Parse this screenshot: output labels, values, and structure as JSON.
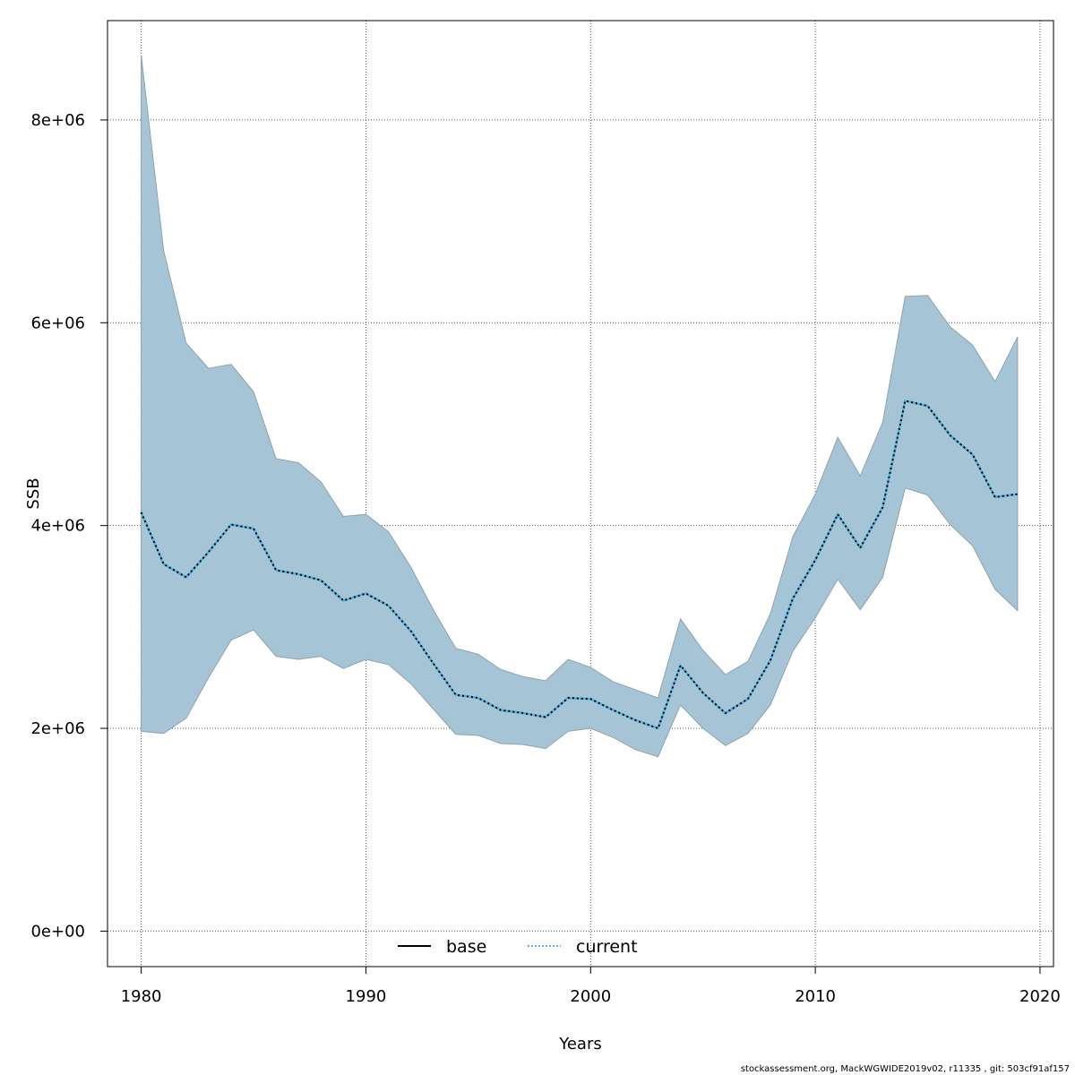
{
  "chart_data": {
    "type": "area",
    "title": "",
    "xlabel": "Years",
    "ylabel": "SSB",
    "xlim": [
      1978.5,
      2020.6
    ],
    "ylim": [
      -350000,
      8980000
    ],
    "grid": true,
    "x_ticks": [
      1980,
      1990,
      2000,
      2010,
      2020
    ],
    "x_tick_labels": [
      "1980",
      "1990",
      "2000",
      "2010",
      "2020"
    ],
    "y_ticks": [
      0,
      2000000,
      4000000,
      6000000,
      8000000
    ],
    "y_tick_labels": [
      "0e+00",
      "2e+06",
      "4e+06",
      "6e+06",
      "8e+06"
    ],
    "legend_position": "bottom",
    "legend": [
      {
        "name": "base",
        "color": "#000000",
        "style": "solid"
      },
      {
        "name": "current",
        "color": "#4fb3e0",
        "style": "dotted"
      }
    ],
    "band_color": "#a5c5d6",
    "x": [
      1980,
      1981,
      1982,
      1983,
      1984,
      1985,
      1986,
      1987,
      1988,
      1989,
      1990,
      1991,
      1992,
      1993,
      1994,
      1995,
      1996,
      1997,
      1998,
      1999,
      2000,
      2001,
      2002,
      2003,
      2004,
      2005,
      2006,
      2007,
      2008,
      2009,
      2010,
      2011,
      2012,
      2013,
      2014,
      2015,
      2016,
      2017,
      2018,
      2019
    ],
    "series": [
      {
        "name": "current",
        "values": [
          4130000,
          3620000,
          3490000,
          3740000,
          4010000,
          3970000,
          3560000,
          3520000,
          3460000,
          3260000,
          3330000,
          3210000,
          2960000,
          2640000,
          2330000,
          2300000,
          2180000,
          2150000,
          2110000,
          2300000,
          2290000,
          2180000,
          2080000,
          2000000,
          2620000,
          2350000,
          2150000,
          2290000,
          2670000,
          3280000,
          3660000,
          4110000,
          3780000,
          4180000,
          5230000,
          5180000,
          4890000,
          4700000,
          4280000,
          4310000
        ]
      },
      {
        "name": "upper",
        "values": [
          8640000,
          6710000,
          5800000,
          5550000,
          5590000,
          5320000,
          4660000,
          4620000,
          4430000,
          4090000,
          4110000,
          3940000,
          3590000,
          3170000,
          2790000,
          2730000,
          2580000,
          2510000,
          2470000,
          2680000,
          2600000,
          2460000,
          2380000,
          2300000,
          3080000,
          2770000,
          2530000,
          2660000,
          3130000,
          3890000,
          4310000,
          4870000,
          4490000,
          5020000,
          6260000,
          6270000,
          5960000,
          5780000,
          5420000,
          5860000
        ]
      },
      {
        "name": "lower",
        "values": [
          1970000,
          1950000,
          2100000,
          2500000,
          2870000,
          2970000,
          2710000,
          2680000,
          2710000,
          2590000,
          2680000,
          2630000,
          2440000,
          2190000,
          1940000,
          1930000,
          1850000,
          1840000,
          1800000,
          1970000,
          2000000,
          1910000,
          1790000,
          1720000,
          2230000,
          2000000,
          1830000,
          1950000,
          2230000,
          2760000,
          3090000,
          3470000,
          3170000,
          3490000,
          4370000,
          4300000,
          4010000,
          3800000,
          3370000,
          3160000
        ]
      }
    ]
  },
  "footer": "stockassessment.org, MackWGWIDE2019v02, r11335 , git: 503cf91af157"
}
